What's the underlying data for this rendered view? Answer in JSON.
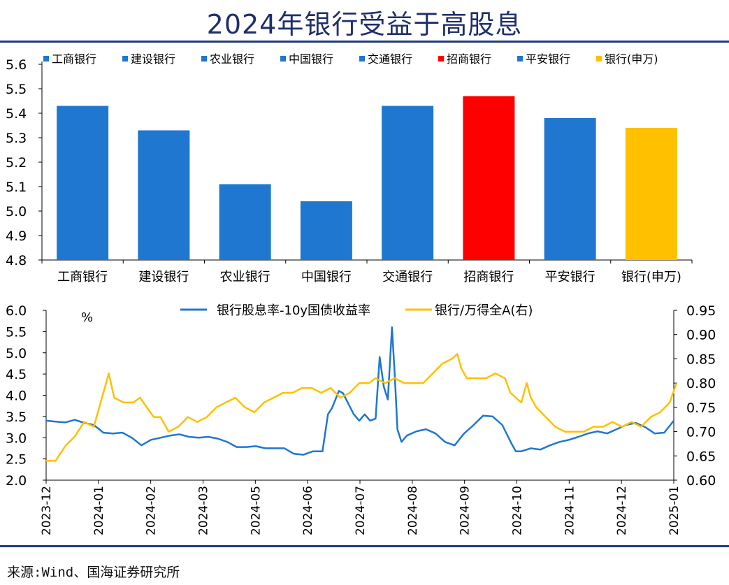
{
  "title": "2024年银行受益于高股息",
  "source": "来源:Wind、国海证券研究所",
  "colors": {
    "blue": "#1f77d0",
    "red": "#ff0000",
    "gold": "#ffc000",
    "title": "#1f2f6b",
    "rule": "#1f3b7a"
  },
  "chart_data": [
    {
      "type": "bar",
      "categories": [
        "工商银行",
        "建设银行",
        "农业银行",
        "中国银行",
        "交通银行",
        "招商银行",
        "平安银行",
        "银行(申万)"
      ],
      "values": [
        5.43,
        5.33,
        5.11,
        5.04,
        5.43,
        5.47,
        5.38,
        5.34
      ],
      "bar_colors": [
        "#1f77d0",
        "#1f77d0",
        "#1f77d0",
        "#1f77d0",
        "#1f77d0",
        "#ff0000",
        "#1f77d0",
        "#ffc000"
      ],
      "legend": [
        "工商银行",
        "建设银行",
        "农业银行",
        "中国银行",
        "交通银行",
        "招商银行",
        "平安银行",
        "银行(申万)"
      ],
      "legend_placement": "top",
      "ylim": [
        4.8,
        5.6
      ],
      "yticks": [
        "4.8",
        "4.9",
        "5.0",
        "5.1",
        "5.2",
        "5.3",
        "5.4",
        "5.5",
        "5.6"
      ],
      "grid": false
    },
    {
      "type": "line",
      "ylabel": "%",
      "ylim": [
        2.0,
        6.0
      ],
      "yticks": [
        "2.0",
        "2.5",
        "3.0",
        "3.5",
        "4.0",
        "4.5",
        "5.0",
        "5.5",
        "6.0"
      ],
      "y2lim": [
        0.6,
        0.95
      ],
      "y2ticks": [
        "0.60",
        "0.65",
        "0.70",
        "0.75",
        "0.80",
        "0.85",
        "0.90",
        "0.95"
      ],
      "xticks": [
        "2023-12",
        "2024-01",
        "2024-02",
        "2024-03",
        "2024-05",
        "2024-06",
        "2024-07",
        "2024-08",
        "2024-09",
        "2024-10",
        "2024-11",
        "2024-12",
        "2025-01"
      ],
      "legend_placement": "top",
      "grid": false,
      "series": [
        {
          "name": "银行股息率-10y国债收益率",
          "axis": "left",
          "color": "#1f77d0",
          "points": [
            [
              "2023-12-01",
              3.4
            ],
            [
              "2023-12-08",
              3.38
            ],
            [
              "2023-12-15",
              3.36
            ],
            [
              "2023-12-22",
              3.42
            ],
            [
              "2023-12-29",
              3.35
            ],
            [
              "2024-01-05",
              3.3
            ],
            [
              "2024-01-12",
              3.12
            ],
            [
              "2024-01-19",
              3.1
            ],
            [
              "2024-01-26",
              3.12
            ],
            [
              "2024-02-02",
              3.0
            ],
            [
              "2024-02-09",
              2.82
            ],
            [
              "2024-02-16",
              2.95
            ],
            [
              "2024-02-23",
              3.0
            ],
            [
              "2024-03-01",
              3.05
            ],
            [
              "2024-03-08",
              3.08
            ],
            [
              "2024-03-15",
              3.02
            ],
            [
              "2024-03-22",
              3.0
            ],
            [
              "2024-03-29",
              3.02
            ],
            [
              "2024-04-05",
              2.98
            ],
            [
              "2024-04-12",
              2.9
            ],
            [
              "2024-04-19",
              2.78
            ],
            [
              "2024-04-26",
              2.78
            ],
            [
              "2024-05-03",
              2.8
            ],
            [
              "2024-05-10",
              2.75
            ],
            [
              "2024-05-17",
              2.75
            ],
            [
              "2024-05-24",
              2.75
            ],
            [
              "2024-05-31",
              2.62
            ],
            [
              "2024-06-07",
              2.6
            ],
            [
              "2024-06-14",
              2.68
            ],
            [
              "2024-06-21",
              2.68
            ],
            [
              "2024-06-25",
              3.55
            ],
            [
              "2024-06-28",
              3.7
            ],
            [
              "2024-07-03",
              4.1
            ],
            [
              "2024-07-06",
              4.05
            ],
            [
              "2024-07-10",
              3.8
            ],
            [
              "2024-07-14",
              3.55
            ],
            [
              "2024-07-18",
              3.4
            ],
            [
              "2024-07-22",
              3.55
            ],
            [
              "2024-07-26",
              3.4
            ],
            [
              "2024-07-30",
              3.45
            ],
            [
              "2024-08-02",
              4.9
            ],
            [
              "2024-08-05",
              4.2
            ],
            [
              "2024-08-08",
              3.9
            ],
            [
              "2024-08-11",
              5.6
            ],
            [
              "2024-08-13",
              4.5
            ],
            [
              "2024-08-15",
              3.2
            ],
            [
              "2024-08-18",
              2.9
            ],
            [
              "2024-08-22",
              3.05
            ],
            [
              "2024-08-29",
              3.15
            ],
            [
              "2024-09-05",
              3.2
            ],
            [
              "2024-09-12",
              3.1
            ],
            [
              "2024-09-19",
              2.9
            ],
            [
              "2024-09-26",
              2.82
            ],
            [
              "2024-10-03",
              3.1
            ],
            [
              "2024-10-10",
              3.3
            ],
            [
              "2024-10-17",
              3.52
            ],
            [
              "2024-10-24",
              3.5
            ],
            [
              "2024-10-31",
              3.3
            ],
            [
              "2024-11-07",
              2.85
            ],
            [
              "2024-11-10",
              2.68
            ],
            [
              "2024-11-14",
              2.68
            ],
            [
              "2024-11-21",
              2.75
            ],
            [
              "2024-11-28",
              2.72
            ],
            [
              "2024-12-05",
              2.82
            ],
            [
              "2024-12-12",
              2.9
            ],
            [
              "2024-12-19",
              2.95
            ],
            [
              "2024-12-26",
              3.02
            ],
            [
              "2025-01-02",
              3.1
            ],
            [
              "2025-01-09",
              3.15
            ],
            [
              "2025-01-16",
              3.1
            ],
            [
              "2025-01-23",
              3.2
            ],
            [
              "2025-01-30",
              3.3
            ],
            [
              "2025-02-06",
              3.35
            ],
            [
              "2025-02-13",
              3.25
            ],
            [
              "2025-02-20",
              3.1
            ],
            [
              "2025-02-27",
              3.12
            ],
            [
              "2025-03-06",
              3.4
            ]
          ]
        },
        {
          "name": "银行/万得全A(右)",
          "axis": "right",
          "color": "#ffc000",
          "points": [
            [
              "2023-12-01",
              0.64
            ],
            [
              "2023-12-08",
              0.64
            ],
            [
              "2023-12-15",
              0.67
            ],
            [
              "2023-12-22",
              0.69
            ],
            [
              "2023-12-29",
              0.72
            ],
            [
              "2024-01-05",
              0.71
            ],
            [
              "2024-01-09",
              0.75
            ],
            [
              "2024-01-13",
              0.79
            ],
            [
              "2024-01-16",
              0.82
            ],
            [
              "2024-01-20",
              0.77
            ],
            [
              "2024-01-27",
              0.76
            ],
            [
              "2024-02-03",
              0.76
            ],
            [
              "2024-02-08",
              0.77
            ],
            [
              "2024-02-13",
              0.75
            ],
            [
              "2024-02-18",
              0.73
            ],
            [
              "2024-02-23",
              0.73
            ],
            [
              "2024-02-29",
              0.7
            ],
            [
              "2024-03-07",
              0.71
            ],
            [
              "2024-03-14",
              0.73
            ],
            [
              "2024-03-21",
              0.72
            ],
            [
              "2024-03-28",
              0.73
            ],
            [
              "2024-04-04",
              0.75
            ],
            [
              "2024-04-11",
              0.76
            ],
            [
              "2024-04-18",
              0.77
            ],
            [
              "2024-04-25",
              0.75
            ],
            [
              "2024-05-02",
              0.74
            ],
            [
              "2024-05-09",
              0.76
            ],
            [
              "2024-05-16",
              0.77
            ],
            [
              "2024-05-23",
              0.78
            ],
            [
              "2024-05-30",
              0.78
            ],
            [
              "2024-06-06",
              0.79
            ],
            [
              "2024-06-13",
              0.79
            ],
            [
              "2024-06-20",
              0.78
            ],
            [
              "2024-06-27",
              0.79
            ],
            [
              "2024-07-04",
              0.77
            ],
            [
              "2024-07-11",
              0.78
            ],
            [
              "2024-07-18",
              0.8
            ],
            [
              "2024-07-25",
              0.8
            ],
            [
              "2024-07-30",
              0.81
            ],
            [
              "2024-08-06",
              0.8
            ],
            [
              "2024-08-13",
              0.81
            ],
            [
              "2024-08-20",
              0.8
            ],
            [
              "2024-08-27",
              0.8
            ],
            [
              "2024-09-03",
              0.8
            ],
            [
              "2024-09-10",
              0.82
            ],
            [
              "2024-09-17",
              0.84
            ],
            [
              "2024-09-24",
              0.85
            ],
            [
              "2024-09-28",
              0.86
            ],
            [
              "2024-10-01",
              0.83
            ],
            [
              "2024-10-05",
              0.81
            ],
            [
              "2024-10-12",
              0.81
            ],
            [
              "2024-10-19",
              0.81
            ],
            [
              "2024-10-26",
              0.82
            ],
            [
              "2024-11-02",
              0.81
            ],
            [
              "2024-11-06",
              0.78
            ],
            [
              "2024-11-10",
              0.77
            ],
            [
              "2024-11-14",
              0.76
            ],
            [
              "2024-11-18",
              0.8
            ],
            [
              "2024-11-21",
              0.77
            ],
            [
              "2024-11-25",
              0.75
            ],
            [
              "2024-12-02",
              0.73
            ],
            [
              "2024-12-09",
              0.71
            ],
            [
              "2024-12-16",
              0.7
            ],
            [
              "2024-12-23",
              0.7
            ],
            [
              "2024-12-30",
              0.7
            ],
            [
              "2025-01-06",
              0.71
            ],
            [
              "2025-01-13",
              0.71
            ],
            [
              "2025-01-20",
              0.72
            ],
            [
              "2025-01-27",
              0.71
            ],
            [
              "2025-02-03",
              0.72
            ],
            [
              "2025-02-10",
              0.71
            ],
            [
              "2025-02-17",
              0.73
            ],
            [
              "2025-02-24",
              0.74
            ],
            [
              "2025-03-03",
              0.76
            ],
            [
              "2025-03-08",
              0.8
            ]
          ]
        }
      ]
    }
  ]
}
